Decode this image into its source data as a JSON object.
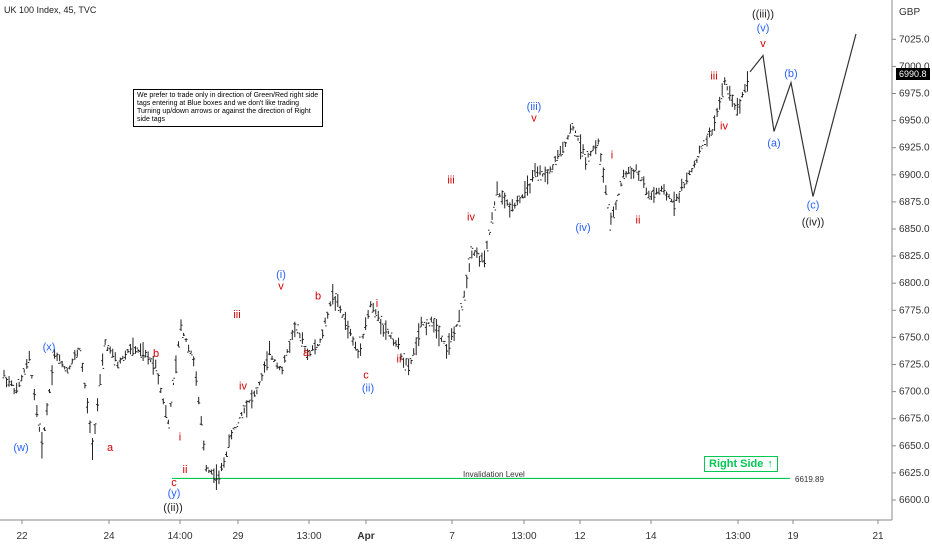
{
  "header": {
    "title": "UK 100 Index, 45, TVC"
  },
  "note": "We prefer to trade only in direction of Green/Red right side tags entering at Blue boxes and we don't like trading Turning up/down arrows or against the direction of Right side tags",
  "right_side": {
    "label": "Right Side",
    "arrow": "↑",
    "color": "#00c853"
  },
  "price_tag": "6990.8",
  "invalidation": {
    "label": "Invalidation Level",
    "value_label": "6619.89",
    "value": 6619.89,
    "color": "#00c853"
  },
  "chart_data": {
    "type": "line",
    "ylim": [
      6585,
      7050
    ],
    "y_ticks": [
      "6600.0",
      "6625.0",
      "6650.0",
      "6675.0",
      "6700.0",
      "6725.0",
      "6750.0",
      "6775.0",
      "6800.0",
      "6825.0",
      "6850.0",
      "6875.0",
      "6900.0",
      "6925.0",
      "6950.0",
      "6975.0",
      "7000.0",
      "7025.0"
    ],
    "y_unit_label": "GBP",
    "x_ticks": [
      "22",
      "24",
      "14:00",
      "29",
      "13:00",
      "Apr",
      "7",
      "13:00",
      "12",
      "14",
      "13:00",
      "19",
      "21"
    ],
    "price_path": [
      6715,
      6700,
      6730,
      6650,
      6735,
      6720,
      6740,
      6650,
      6745,
      6725,
      6740,
      6735,
      6725,
      6670,
      6760,
      6730,
      6630,
      6620,
      6660,
      6685,
      6700,
      6735,
      6720,
      6760,
      6735,
      6745,
      6790,
      6765,
      6735,
      6780,
      6760,
      6745,
      6720,
      6760,
      6765,
      6740,
      6765,
      6830,
      6820,
      6885,
      6870,
      6880,
      6900,
      6900,
      6920,
      6945,
      6915,
      6930,
      6855,
      6900,
      6905,
      6880,
      6885,
      6875,
      6895,
      6920,
      6940,
      6985,
      6960,
      6995
    ],
    "projection": [
      7010,
      6940,
      6985,
      6880,
      7030
    ],
    "colors": {
      "black": "#222222",
      "red": "#d50000",
      "blue": "#2962ff",
      "green": "#00c853"
    },
    "wave_labels": [
      {
        "text": "(w)",
        "color": "blue",
        "price": 6645
      },
      {
        "text": "(x)",
        "color": "blue",
        "price": 6738
      },
      {
        "text": "a",
        "color": "red",
        "price": 6645
      },
      {
        "text": "b",
        "color": "red",
        "price": 6732
      },
      {
        "text": "i",
        "color": "red",
        "price": 6655
      },
      {
        "text": "ii",
        "color": "red",
        "price": 6625
      },
      {
        "text": "c",
        "color": "red",
        "price": 6613
      },
      {
        "text": "(y)",
        "color": "blue",
        "price": 6603
      },
      {
        "text": "((ii))",
        "color": "black",
        "price": 6590
      },
      {
        "text": "iii",
        "color": "red",
        "price": 6768
      },
      {
        "text": "iv",
        "color": "red",
        "price": 6702
      },
      {
        "text": "(i)",
        "color": "blue",
        "price": 6805
      },
      {
        "text": "v",
        "color": "red",
        "price": 6794
      },
      {
        "text": "a",
        "color": "red",
        "price": 6733
      },
      {
        "text": "b",
        "color": "red",
        "price": 6785
      },
      {
        "text": "i",
        "color": "red",
        "price": 6778
      },
      {
        "text": "c",
        "color": "red",
        "price": 6712
      },
      {
        "text": "(ii)",
        "color": "blue",
        "price": 6700
      },
      {
        "text": "ii",
        "color": "red",
        "price": 6727
      },
      {
        "text": "iii",
        "color": "red",
        "price": 6892
      },
      {
        "text": "iv",
        "color": "red",
        "price": 6858
      },
      {
        "text": "(iii)",
        "color": "blue",
        "price": 6960
      },
      {
        "text": "v",
        "color": "red",
        "price": 6949
      },
      {
        "text": "(iv)",
        "color": "blue",
        "price": 6848
      },
      {
        "text": "i",
        "color": "red",
        "price": 6915
      },
      {
        "text": "ii",
        "color": "red",
        "price": 6855
      },
      {
        "text": "iii",
        "color": "red",
        "price": 6988
      },
      {
        "text": "iv",
        "color": "red",
        "price": 6942
      },
      {
        "text": "((iii))",
        "color": "black",
        "price": 7045
      },
      {
        "text": "(v)",
        "color": "blue",
        "price": 7032
      },
      {
        "text": "v",
        "color": "red",
        "price": 7018
      },
      {
        "text": "(a)",
        "color": "blue",
        "price": 6926
      },
      {
        "text": "(b)",
        "color": "blue",
        "price": 6990
      },
      {
        "text": "(c)",
        "color": "blue",
        "price": 6869
      },
      {
        "text": "((iv))",
        "color": "black",
        "price": 6853
      }
    ]
  }
}
